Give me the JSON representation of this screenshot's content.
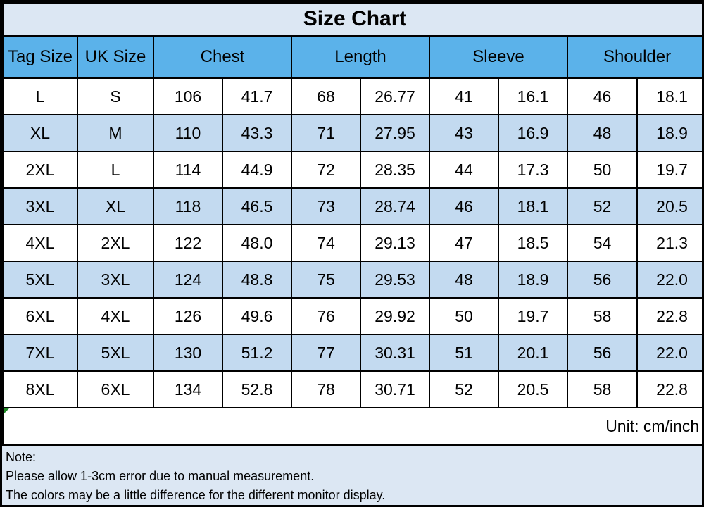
{
  "colors": {
    "header_bg": "#5bb2ea",
    "band_bg": "#c3daf0",
    "panel_bg": "#dce7f3",
    "border": "#000000",
    "marker_green": "#1f8a25"
  },
  "chart_data": {
    "type": "table",
    "title": "Size Chart",
    "unit_label": "Unit: cm/inch",
    "column_groups": [
      "Tag Size",
      "UK Size",
      "Chest",
      "Length",
      "Sleeve",
      "Shoulder"
    ],
    "columns": [
      "Tag Size",
      "UK Size",
      "Chest (cm)",
      "Chest (inch)",
      "Length (cm)",
      "Length (inch)",
      "Sleeve (cm)",
      "Sleeve (inch)",
      "Shoulder (cm)",
      "Shoulder (inch)"
    ],
    "rows": [
      [
        "L",
        "S",
        "106",
        "41.7",
        "68",
        "26.77",
        "41",
        "16.1",
        "46",
        "18.1"
      ],
      [
        "XL",
        "M",
        "110",
        "43.3",
        "71",
        "27.95",
        "43",
        "16.9",
        "48",
        "18.9"
      ],
      [
        "2XL",
        "L",
        "114",
        "44.9",
        "72",
        "28.35",
        "44",
        "17.3",
        "50",
        "19.7"
      ],
      [
        "3XL",
        "XL",
        "118",
        "46.5",
        "73",
        "28.74",
        "46",
        "18.1",
        "52",
        "20.5"
      ],
      [
        "4XL",
        "2XL",
        "122",
        "48.0",
        "74",
        "29.13",
        "47",
        "18.5",
        "54",
        "21.3"
      ],
      [
        "5XL",
        "3XL",
        "124",
        "48.8",
        "75",
        "29.53",
        "48",
        "18.9",
        "56",
        "22.0"
      ],
      [
        "6XL",
        "4XL",
        "126",
        "49.6",
        "76",
        "29.92",
        "50",
        "19.7",
        "58",
        "22.8"
      ],
      [
        "7XL",
        "5XL",
        "130",
        "51.2",
        "77",
        "30.31",
        "51",
        "20.1",
        "56",
        "22.0"
      ],
      [
        "8XL",
        "6XL",
        "134",
        "52.8",
        "78",
        "30.71",
        "52",
        "20.5",
        "58",
        "22.8"
      ]
    ],
    "notes": [
      "Note:",
      "Please allow 1-3cm error due to manual measurement.",
      "The colors may be a little difference for the different monitor display."
    ]
  }
}
